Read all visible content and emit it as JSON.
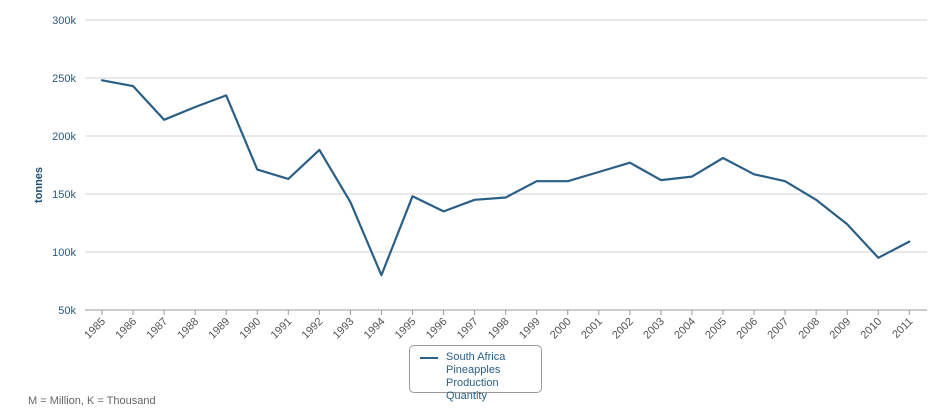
{
  "chart_data": {
    "type": "line",
    "ylabel": "tonnes",
    "ylim": [
      50000,
      300000
    ],
    "yticks": [
      {
        "value": 50000,
        "label": "50k"
      },
      {
        "value": 100000,
        "label": "100k"
      },
      {
        "value": 150000,
        "label": "150k"
      },
      {
        "value": 200000,
        "label": "200k"
      },
      {
        "value": 250000,
        "label": "250k"
      },
      {
        "value": 300000,
        "label": "300k"
      }
    ],
    "categories": [
      "1985",
      "1986",
      "1987",
      "1988",
      "1989",
      "1990",
      "1991",
      "1992",
      "1993",
      "1994",
      "1995",
      "1996",
      "1997",
      "1998",
      "1999",
      "2000",
      "2001",
      "2002",
      "2003",
      "2004",
      "2005",
      "2006",
      "2007",
      "2008",
      "2009",
      "2010",
      "2011"
    ],
    "series": [
      {
        "name": "South Africa Pineapples Production Quantity",
        "color": "#2a5f86",
        "values": [
          248000,
          243000,
          214000,
          225000,
          235000,
          171000,
          163000,
          188000,
          143000,
          80000,
          148000,
          135000,
          145000,
          147000,
          161000,
          161000,
          169000,
          177000,
          162000,
          165000,
          181000,
          167000,
          161000,
          145000,
          124000,
          95000,
          109000
        ]
      }
    ],
    "grid": true,
    "legend_position": "bottom-center"
  },
  "legend": {
    "label": "South Africa Pineapples Production Quantity"
  },
  "footnote": "M = Million, K = Thousand"
}
